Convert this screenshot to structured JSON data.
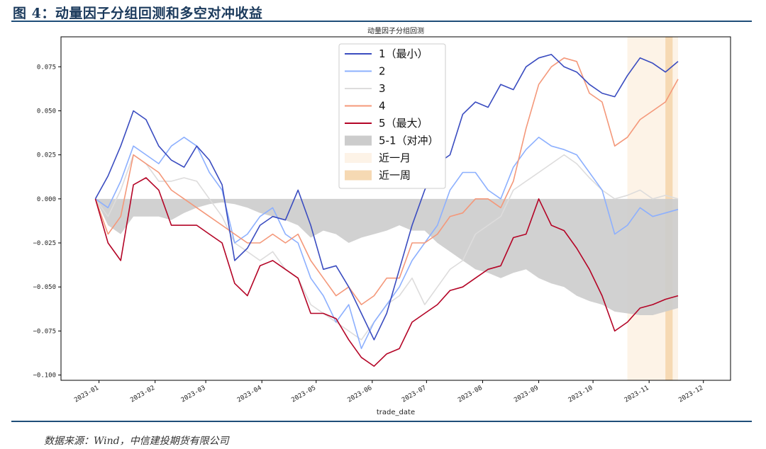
{
  "figure_title": "图 4：动量因子分组回测和多空对冲收益",
  "source": "数据来源：Wind，中信建投期货有限公司",
  "chart_data": {
    "type": "line",
    "title": "动量因子分组回测",
    "xlabel": "trade_date",
    "ylabel": "",
    "ylim": [
      -0.103,
      0.092
    ],
    "xlim": [
      "2022-12-11",
      "2023-12-16"
    ],
    "yticks": [
      0.075,
      0.05,
      0.025,
      0.0,
      -0.025,
      -0.05,
      -0.075,
      -0.1
    ],
    "ytick_labels": [
      "0.075",
      "0.050",
      "0.025",
      "0.000",
      "−0.025",
      "−0.050",
      "−0.075",
      "−0.100"
    ],
    "xticks": [
      "2023-01-01",
      "2023-02-01",
      "2023-03-01",
      "2023-04-01",
      "2023-05-01",
      "2023-06-01",
      "2023-07-01",
      "2023-08-01",
      "2023-09-01",
      "2023-10-01",
      "2023-11-01",
      "2023-12-01"
    ],
    "xtick_labels": [
      "2023-01",
      "2023-02",
      "2023-03",
      "2023-04",
      "2023-05",
      "2023-06",
      "2023-07",
      "2023-08",
      "2023-09",
      "2023-10",
      "2023-11",
      "2023-12"
    ],
    "grid": false,
    "legend_position": "top-center",
    "x": [
      "2022-12-30",
      "2023-01-06",
      "2023-01-13",
      "2023-01-20",
      "2023-01-27",
      "2023-02-03",
      "2023-02-10",
      "2023-02-17",
      "2023-02-24",
      "2023-03-03",
      "2023-03-10",
      "2023-03-17",
      "2023-03-24",
      "2023-03-31",
      "2023-04-07",
      "2023-04-14",
      "2023-04-21",
      "2023-04-28",
      "2023-05-05",
      "2023-05-12",
      "2023-05-19",
      "2023-05-26",
      "2023-06-02",
      "2023-06-09",
      "2023-06-16",
      "2023-06-23",
      "2023-06-30",
      "2023-07-07",
      "2023-07-14",
      "2023-07-21",
      "2023-07-28",
      "2023-08-04",
      "2023-08-11",
      "2023-08-18",
      "2023-08-25",
      "2023-09-01",
      "2023-09-08",
      "2023-09-15",
      "2023-09-22",
      "2023-09-29",
      "2023-10-06",
      "2023-10-13",
      "2023-10-20",
      "2023-10-27",
      "2023-11-03",
      "2023-11-10",
      "2023-11-17"
    ],
    "series": [
      {
        "name": "1（最小）",
        "color": "#3a4cc0",
        "values": [
          0.0,
          0.013,
          0.03,
          0.05,
          0.045,
          0.03,
          0.022,
          0.018,
          0.03,
          0.022,
          0.008,
          -0.035,
          -0.028,
          -0.015,
          -0.01,
          -0.012,
          0.005,
          -0.015,
          -0.04,
          -0.038,
          -0.05,
          -0.065,
          -0.08,
          -0.065,
          -0.04,
          -0.015,
          0.005,
          0.02,
          0.025,
          0.048,
          0.055,
          0.052,
          0.065,
          0.062,
          0.075,
          0.08,
          0.082,
          0.075,
          0.072,
          0.065,
          0.06,
          0.058,
          0.07,
          0.08,
          0.077,
          0.072,
          0.078
        ]
      },
      {
        "name": "2",
        "color": "#8db0fe",
        "values": [
          0.0,
          -0.005,
          0.01,
          0.03,
          0.025,
          0.02,
          0.03,
          0.035,
          0.03,
          0.015,
          0.005,
          -0.025,
          -0.02,
          -0.01,
          -0.005,
          -0.02,
          -0.025,
          -0.045,
          -0.055,
          -0.07,
          -0.06,
          -0.085,
          -0.07,
          -0.06,
          -0.05,
          -0.035,
          -0.025,
          -0.015,
          0.005,
          0.015,
          0.015,
          0.005,
          0.0,
          0.018,
          0.028,
          0.035,
          0.03,
          0.028,
          0.025,
          0.015,
          0.005,
          -0.02,
          -0.015,
          -0.005,
          -0.01,
          -0.008,
          -0.006
        ]
      },
      {
        "name": "3",
        "color": "#dddcdc",
        "values": [
          0.0,
          -0.01,
          0.005,
          0.025,
          0.02,
          0.01,
          0.01,
          0.012,
          0.01,
          0.0,
          -0.01,
          -0.025,
          -0.03,
          -0.035,
          -0.03,
          -0.04,
          -0.045,
          -0.06,
          -0.065,
          -0.07,
          -0.075,
          -0.08,
          -0.07,
          -0.06,
          -0.055,
          -0.045,
          -0.06,
          -0.05,
          -0.04,
          -0.035,
          -0.02,
          -0.015,
          -0.01,
          0.005,
          0.01,
          0.015,
          0.02,
          0.025,
          0.02,
          0.012,
          0.005,
          0.0,
          0.002,
          0.005,
          0.0,
          0.002,
          0.0
        ]
      },
      {
        "name": "4",
        "color": "#f4987a",
        "values": [
          0.0,
          -0.02,
          -0.01,
          0.025,
          0.02,
          0.015,
          0.005,
          0.0,
          -0.005,
          -0.01,
          -0.015,
          -0.02,
          -0.025,
          -0.025,
          -0.02,
          -0.025,
          -0.02,
          -0.035,
          -0.045,
          -0.055,
          -0.05,
          -0.06,
          -0.055,
          -0.045,
          -0.045,
          -0.025,
          -0.025,
          -0.02,
          -0.01,
          -0.008,
          0.0,
          0.0,
          -0.005,
          0.01,
          0.04,
          0.065,
          0.075,
          0.08,
          0.078,
          0.06,
          0.055,
          0.03,
          0.035,
          0.045,
          0.05,
          0.055,
          0.068
        ]
      },
      {
        "name": "5（最大）",
        "color": "#b40426",
        "values": [
          0.0,
          -0.025,
          -0.035,
          0.008,
          0.012,
          0.005,
          -0.015,
          -0.015,
          -0.015,
          -0.02,
          -0.025,
          -0.048,
          -0.055,
          -0.038,
          -0.035,
          -0.04,
          -0.045,
          -0.065,
          -0.065,
          -0.068,
          -0.08,
          -0.09,
          -0.095,
          -0.088,
          -0.085,
          -0.07,
          -0.065,
          -0.06,
          -0.052,
          -0.05,
          -0.045,
          -0.04,
          -0.038,
          -0.022,
          -0.02,
          0.0,
          -0.015,
          -0.018,
          -0.028,
          -0.04,
          -0.055,
          -0.075,
          -0.07,
          -0.062,
          -0.06,
          -0.057,
          -0.055
        ]
      }
    ],
    "hedge": {
      "name": "5-1（对冲）",
      "color": "#cccccc",
      "values": [
        0.0,
        -0.015,
        -0.02,
        -0.01,
        -0.01,
        -0.01,
        -0.012,
        -0.008,
        -0.005,
        -0.003,
        -0.002,
        -0.003,
        -0.005,
        -0.008,
        -0.01,
        -0.012,
        -0.015,
        -0.022,
        -0.018,
        -0.02,
        -0.025,
        -0.022,
        -0.02,
        -0.018,
        -0.015,
        -0.018,
        -0.018,
        -0.025,
        -0.03,
        -0.035,
        -0.04,
        -0.042,
        -0.045,
        -0.042,
        -0.04,
        -0.045,
        -0.048,
        -0.05,
        -0.055,
        -0.058,
        -0.06,
        -0.064,
        -0.065,
        -0.066,
        -0.066,
        -0.064,
        -0.062
      ]
    },
    "shaded_ranges": [
      {
        "name": "近一月",
        "start": "2023-10-20",
        "end": "2023-11-17",
        "color": "#fdf3e7"
      },
      {
        "name": "近一周",
        "start": "2023-11-10",
        "end": "2023-11-14",
        "color": "#f6d9b3"
      }
    ]
  }
}
